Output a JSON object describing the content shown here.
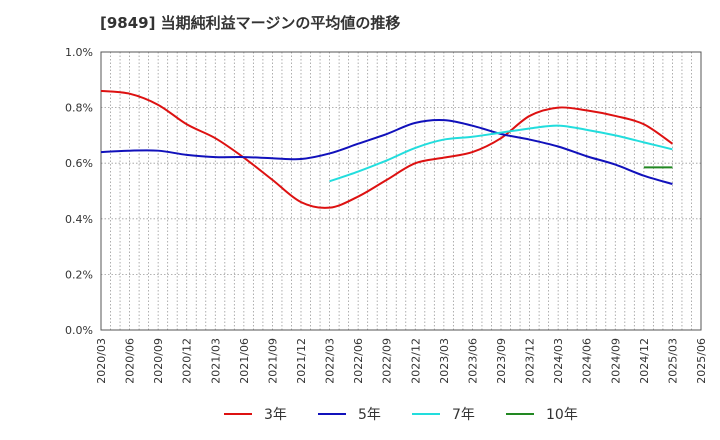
{
  "chart_data": {
    "type": "line",
    "title": "[9849]  当期純利益マージンの平均値の推移",
    "xlabel": "",
    "ylabel": "",
    "ylim": [
      0.0,
      1.0
    ],
    "y_ticks": [
      "0.0%",
      "0.2%",
      "0.4%",
      "0.6%",
      "0.8%",
      "1.0%"
    ],
    "y_tick_values": [
      0.0,
      0.2,
      0.4,
      0.6,
      0.8,
      1.0
    ],
    "x_ticks": [
      "2020/03",
      "2020/06",
      "2020/09",
      "2020/12",
      "2021/03",
      "2021/06",
      "2021/09",
      "2021/12",
      "2022/03",
      "2022/06",
      "2022/09",
      "2022/12",
      "2023/03",
      "2023/06",
      "2023/09",
      "2023/12",
      "2024/03",
      "2024/06",
      "2024/09",
      "2024/12",
      "2025/03",
      "2025/06"
    ],
    "grid": true,
    "legend_position": "bottom",
    "series": [
      {
        "name": "3年",
        "color": "#dd1111",
        "x": [
          "2020/03",
          "2020/06",
          "2020/09",
          "2020/12",
          "2021/03",
          "2021/06",
          "2021/09",
          "2021/12",
          "2022/03",
          "2022/06",
          "2022/09",
          "2022/12",
          "2023/03",
          "2023/06",
          "2023/09",
          "2023/12",
          "2024/03",
          "2024/06",
          "2024/09",
          "2024/12",
          "2025/03"
        ],
        "values": [
          0.86,
          0.85,
          0.81,
          0.74,
          0.69,
          0.62,
          0.54,
          0.46,
          0.44,
          0.48,
          0.54,
          0.6,
          0.62,
          0.64,
          0.69,
          0.77,
          0.8,
          0.79,
          0.77,
          0.74,
          0.67
        ]
      },
      {
        "name": "5年",
        "color": "#1111bb",
        "x": [
          "2020/03",
          "2020/06",
          "2020/09",
          "2020/12",
          "2021/03",
          "2021/06",
          "2021/09",
          "2021/12",
          "2022/03",
          "2022/06",
          "2022/09",
          "2022/12",
          "2023/03",
          "2023/06",
          "2023/09",
          "2023/12",
          "2024/03",
          "2024/06",
          "2024/09",
          "2024/12",
          "2025/03"
        ],
        "values": [
          0.64,
          0.645,
          0.645,
          0.63,
          0.622,
          0.622,
          0.618,
          0.615,
          0.635,
          0.67,
          0.705,
          0.745,
          0.755,
          0.735,
          0.705,
          0.685,
          0.66,
          0.625,
          0.595,
          0.555,
          0.525
        ]
      },
      {
        "name": "7年",
        "color": "#22dddd",
        "x": [
          "2022/03",
          "2022/06",
          "2022/09",
          "2022/12",
          "2023/03",
          "2023/06",
          "2023/09",
          "2023/12",
          "2024/03",
          "2024/06",
          "2024/09",
          "2024/12",
          "2025/03"
        ],
        "values": [
          0.535,
          0.57,
          0.61,
          0.655,
          0.685,
          0.695,
          0.71,
          0.725,
          0.735,
          0.72,
          0.7,
          0.675,
          0.65
        ]
      },
      {
        "name": "10年",
        "color": "#228822",
        "x": [
          "2024/12",
          "2025/03"
        ],
        "values": [
          0.585,
          0.585
        ]
      }
    ]
  }
}
